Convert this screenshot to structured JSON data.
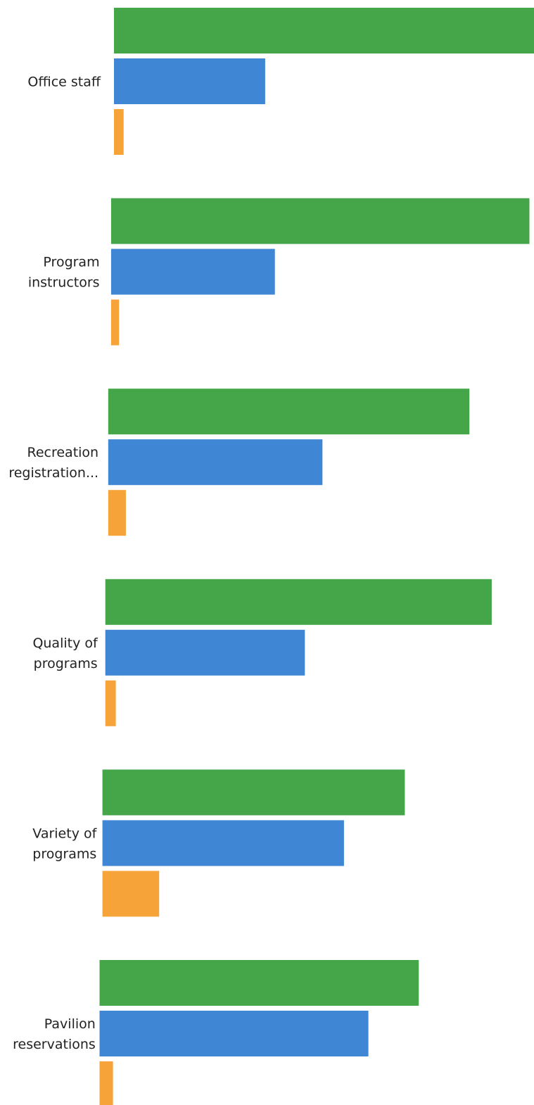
{
  "chart_data": {
    "type": "bar",
    "orientation": "horizontal",
    "categories": [
      [
        "Office staff"
      ],
      [
        "Program",
        "instructors"
      ],
      [
        "Recreation",
        "registration..."
      ],
      [
        "Quality of",
        "programs"
      ],
      [
        "Variety of",
        "programs"
      ],
      [
        "Pavilion",
        "reservations"
      ]
    ],
    "series": [
      {
        "color": "#44a648",
        "values": [
          100,
          99.6,
          86,
          92,
          72,
          76
        ]
      },
      {
        "color": "#3f86d4",
        "values": [
          36,
          39,
          51,
          47.5,
          57.5,
          64
        ]
      },
      {
        "color": "#f6a33a",
        "values": [
          2.3,
          1.9,
          4.2,
          2.5,
          13.5,
          3.2
        ]
      }
    ],
    "xlim": [
      0,
      100
    ],
    "grid": false,
    "legend": "none"
  }
}
